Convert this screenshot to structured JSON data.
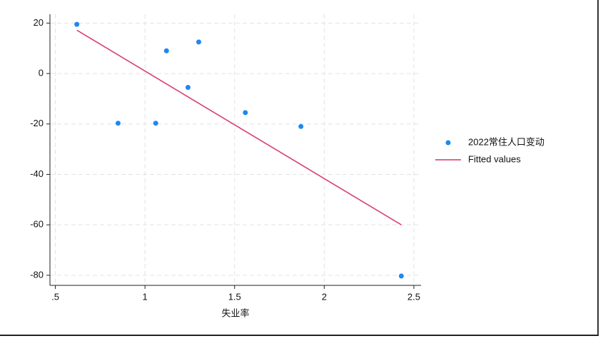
{
  "chart_data": {
    "type": "scatter",
    "x_label": "失业率",
    "xlim": [
      0.47,
      2.54
    ],
    "xticks": [
      {
        "value": 0.5,
        "label": ".5"
      },
      1,
      1.5,
      2,
      2.5
    ],
    "ylim": [
      -84,
      23.5
    ],
    "yticks": [
      20,
      0,
      -20,
      -40,
      -60,
      -80
    ],
    "grid": true,
    "legend": "right",
    "series": [
      {
        "name": "2022常住人口变动",
        "type": "scatter",
        "color": "#1e88f0",
        "x": [
          0.62,
          0.85,
          1.06,
          1.12,
          1.24,
          1.3,
          1.56,
          1.87,
          2.43
        ],
        "values": [
          19.5,
          -19.7,
          -19.7,
          9,
          -5.5,
          12.5,
          -15.5,
          -21,
          -80.3
        ]
      },
      {
        "name": "Fitted values",
        "type": "line",
        "color": "#d6336c",
        "x": [
          0.62,
          2.43
        ],
        "values": [
          17.2,
          -60
        ]
      }
    ]
  }
}
